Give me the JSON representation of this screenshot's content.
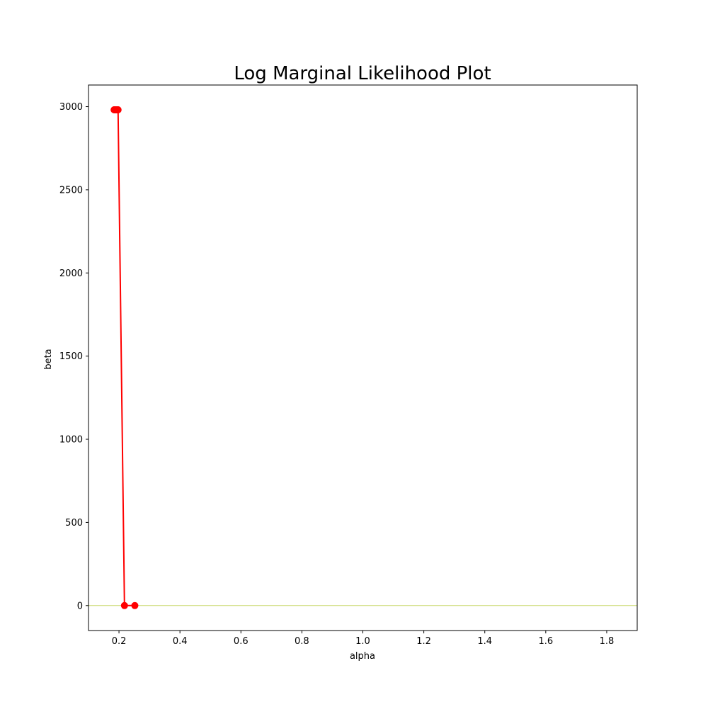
{
  "chart_data": {
    "type": "line",
    "title": "Log Marginal Likelihood Plot",
    "xlabel": "alpha",
    "ylabel": "beta",
    "xlim": [
      0.1,
      1.9
    ],
    "ylim": [
      -150,
      3130
    ],
    "xticks": [
      0.2,
      0.4,
      0.6,
      0.8,
      1.0,
      1.2,
      1.4,
      1.6,
      1.8
    ],
    "xtick_labels": [
      "0.2",
      "0.4",
      "0.6",
      "0.8",
      "1.0",
      "1.2",
      "1.4",
      "1.6",
      "1.8"
    ],
    "yticks": [
      0,
      500,
      1000,
      1500,
      2000,
      2500,
      3000
    ],
    "ytick_labels": [
      "0",
      "500",
      "1000",
      "1500",
      "2000",
      "2500",
      "3000"
    ],
    "grid": false,
    "series": [
      {
        "color": "#ff0000",
        "marker": "circle",
        "x": [
          0.252,
          0.218,
          0.197,
          0.196,
          0.194,
          0.192,
          0.19,
          0.188,
          0.186,
          0.185,
          0.184
        ],
        "y": [
          0,
          0,
          2981,
          2981,
          2981,
          2981,
          2981,
          2981,
          2981,
          2981,
          2981
        ]
      }
    ],
    "background_contour": {
      "color": "#c8d86a",
      "y": 0
    }
  }
}
